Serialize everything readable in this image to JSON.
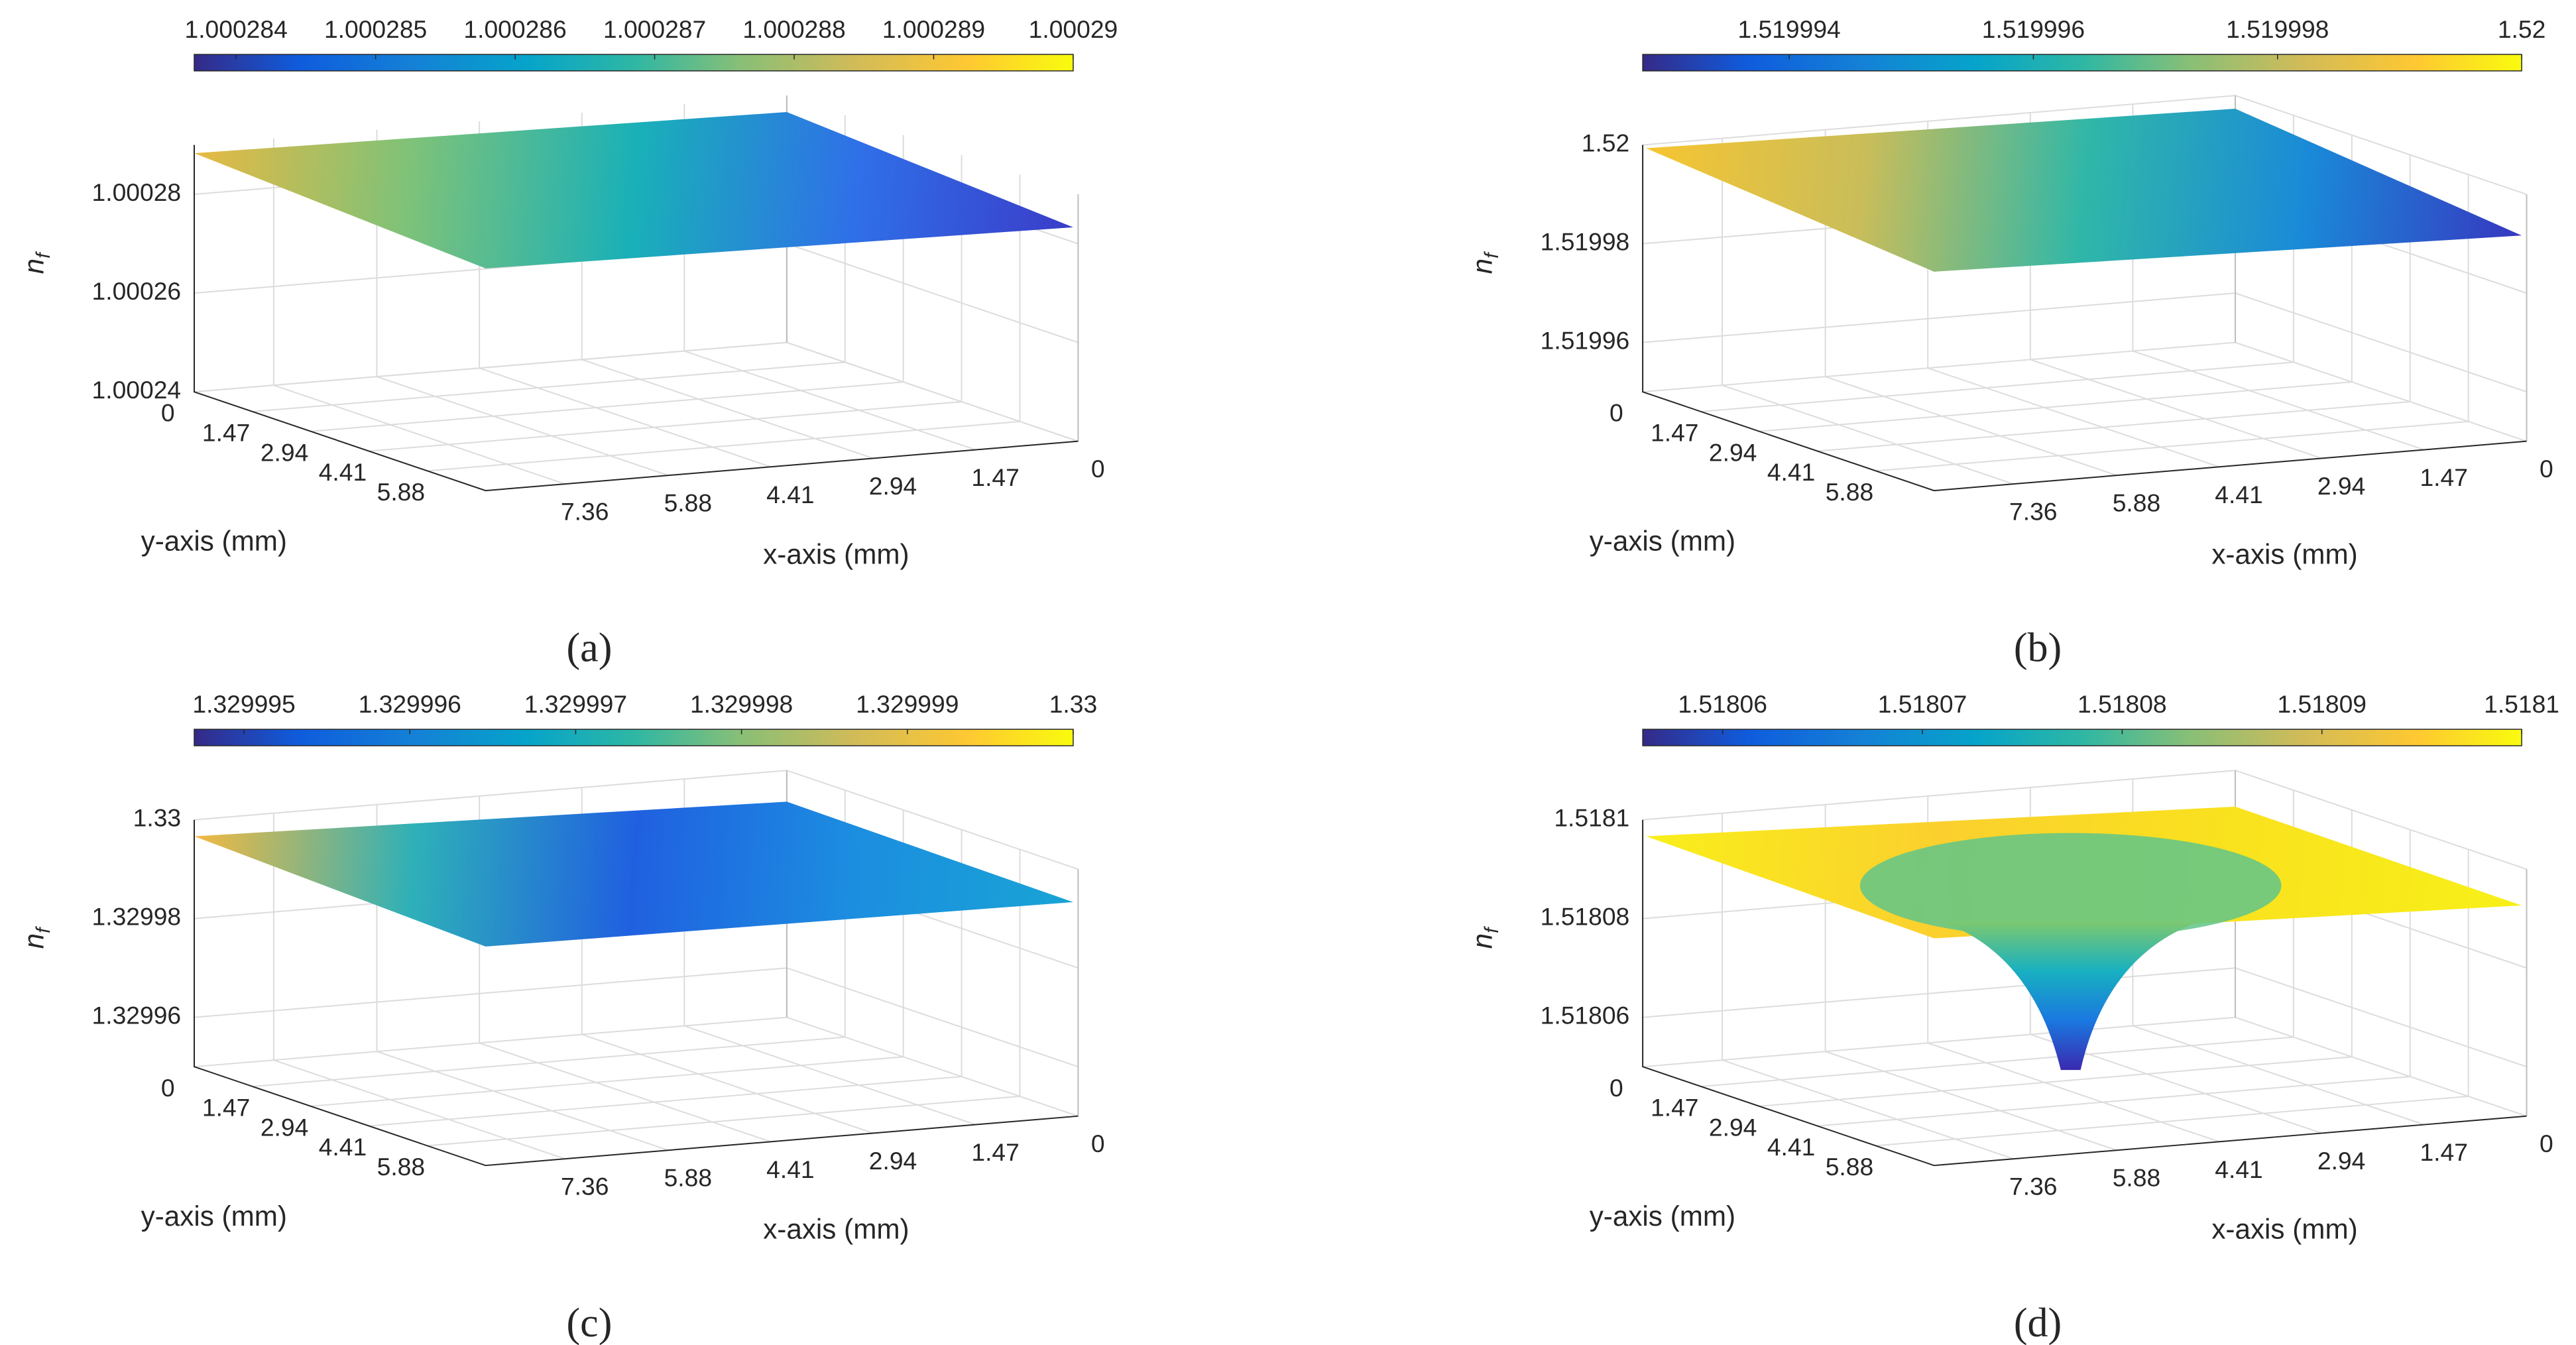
{
  "chart_data": [
    {
      "type": "surface",
      "panel_label": "(a)",
      "colorbar": {
        "clim": [
          1.0002837,
          1.00029
        ],
        "ticks": [
          1.000284,
          1.000285,
          1.000286,
          1.000287,
          1.000288,
          1.000289,
          1.00029
        ]
      },
      "xlabel": "x-axis (mm)",
      "ylabel": "y-axis (mm)",
      "zlabel": {
        "base": "n",
        "sub": "f"
      },
      "xlim": [
        0,
        8.5
      ],
      "xticks": [
        0,
        1.47,
        2.94,
        4.41,
        5.88,
        7.36
      ],
      "ylim": [
        0,
        7.35
      ],
      "yticks": [
        0,
        1.47,
        2.94,
        4.41,
        5.88
      ],
      "zlim": [
        1.00024,
        1.00029
      ],
      "zticks": [
        1.00024,
        1.00026,
        1.00028
      ],
      "grid": true
    },
    {
      "type": "surface",
      "panel_label": "(b)",
      "colorbar": {
        "clim": [
          1.5199928,
          1.52
        ],
        "ticks": [
          1.519994,
          1.519996,
          1.519998,
          1.52
        ]
      },
      "xlabel": "x-axis (mm)",
      "ylabel": "y-axis (mm)",
      "zlabel": {
        "base": "n",
        "sub": "f"
      },
      "xlim": [
        0,
        8.5
      ],
      "xticks": [
        0,
        1.47,
        2.94,
        4.41,
        5.88,
        7.36
      ],
      "ylim": [
        0,
        7.35
      ],
      "yticks": [
        0,
        1.47,
        2.94,
        4.41,
        5.88
      ],
      "zlim": [
        1.51995,
        1.52
      ],
      "zticks": [
        1.51996,
        1.51998,
        1.52
      ],
      "grid": true
    },
    {
      "type": "surface",
      "panel_label": "(c)",
      "colorbar": {
        "clim": [
          1.3299947,
          1.33
        ],
        "ticks": [
          1.329995,
          1.329996,
          1.329997,
          1.329998,
          1.329999,
          1.33
        ]
      },
      "xlabel": "x-axis (mm)",
      "ylabel": "y-axis (mm)",
      "zlabel": {
        "base": "n",
        "sub": "f"
      },
      "xlim": [
        0,
        8.5
      ],
      "xticks": [
        0,
        1.47,
        2.94,
        4.41,
        5.88,
        7.36
      ],
      "ylim": [
        0,
        7.35
      ],
      "yticks": [
        0,
        1.47,
        2.94,
        4.41,
        5.88
      ],
      "zlim": [
        1.32995,
        1.33
      ],
      "zticks": [
        1.32996,
        1.32998,
        1.33
      ],
      "grid": true
    },
    {
      "type": "surface",
      "panel_label": "(d)",
      "colorbar": {
        "clim": [
          1.518056,
          1.5181
        ],
        "ticks": [
          1.51806,
          1.51807,
          1.51808,
          1.51809,
          1.5181
        ]
      },
      "xlabel": "x-axis (mm)",
      "ylabel": "y-axis (mm)",
      "zlabel": {
        "base": "n",
        "sub": "f"
      },
      "xlim": [
        0,
        8.5
      ],
      "xticks": [
        0,
        1.47,
        2.94,
        4.41,
        5.88,
        7.36
      ],
      "ylim": [
        0,
        7.35
      ],
      "yticks": [
        0,
        1.47,
        2.94,
        4.41,
        5.88
      ],
      "zlim": [
        1.51805,
        1.5181
      ],
      "zticks": [
        1.51806,
        1.51808,
        1.5181
      ],
      "grid": true
    }
  ]
}
